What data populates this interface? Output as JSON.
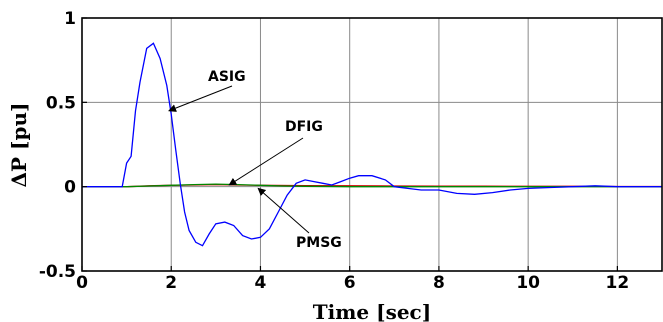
{
  "chart_data": {
    "type": "line",
    "title": "",
    "xlabel": "Time [sec]",
    "ylabel": "ΔP [pu]",
    "xlim": [
      0,
      13
    ],
    "ylim": [
      -0.5,
      1
    ],
    "xticks": [
      0,
      2,
      4,
      6,
      8,
      10,
      12
    ],
    "yticks": [
      -0.5,
      0,
      0.5,
      1
    ],
    "xtick_labels": [
      "0",
      "2",
      "4",
      "6",
      "8",
      "10",
      "12"
    ],
    "ytick_labels": [
      "-0.5",
      "0",
      "0.5",
      "1"
    ],
    "grid": true,
    "series": [
      {
        "name": "ASIG",
        "color": "#0000ff",
        "x": [
          0,
          0.9,
          1.0,
          1.1,
          1.2,
          1.3,
          1.45,
          1.6,
          1.75,
          1.9,
          2.0,
          2.1,
          2.2,
          2.3,
          2.4,
          2.55,
          2.7,
          2.85,
          3.0,
          3.2,
          3.4,
          3.6,
          3.8,
          4.0,
          4.2,
          4.4,
          4.6,
          4.8,
          5.0,
          5.2,
          5.4,
          5.6,
          5.8,
          6.0,
          6.2,
          6.5,
          6.8,
          7.0,
          7.3,
          7.6,
          8.0,
          8.4,
          8.8,
          9.2,
          9.6,
          10.0,
          10.5,
          11.0,
          11.5,
          12.0,
          12.5,
          13.0
        ],
        "y": [
          0,
          0,
          0.14,
          0.18,
          0.45,
          0.62,
          0.82,
          0.85,
          0.76,
          0.6,
          0.43,
          0.22,
          0.02,
          -0.15,
          -0.26,
          -0.33,
          -0.35,
          -0.28,
          -0.22,
          -0.21,
          -0.23,
          -0.29,
          -0.31,
          -0.3,
          -0.25,
          -0.15,
          -0.05,
          0.02,
          0.04,
          0.03,
          0.02,
          0.01,
          0.03,
          0.05,
          0.065,
          0.065,
          0.04,
          0.0,
          -0.01,
          -0.02,
          -0.02,
          -0.04,
          -0.045,
          -0.035,
          -0.02,
          -0.01,
          -0.005,
          0.0,
          0.005,
          0.0,
          0.0,
          0.0
        ]
      },
      {
        "name": "DFIG",
        "color": "#cc0000",
        "x": [
          0,
          1.0,
          1.5,
          2.0,
          2.5,
          3.0,
          3.5,
          4.0,
          5.0,
          6.0,
          7.0,
          8.0,
          9.0,
          10.0,
          11.0,
          12.0,
          13.0
        ],
        "y": [
          0,
          0,
          0.005,
          0.008,
          0.01,
          0.012,
          0.01,
          0.008,
          0.006,
          0.005,
          0.004,
          0.003,
          0.003,
          0.002,
          0.002,
          0.001,
          0.001
        ]
      },
      {
        "name": "PMSG",
        "color": "#008800",
        "x": [
          0,
          1.0,
          1.5,
          2.0,
          2.5,
          3.0,
          3.5,
          4.0,
          4.5,
          5.0,
          6.0,
          7.0,
          8.0,
          10.0,
          13.0
        ],
        "y": [
          0,
          0,
          0.004,
          0.008,
          0.012,
          0.015,
          0.012,
          0.008,
          0.004,
          0.002,
          0.0,
          0.0,
          0.0,
          0.0,
          0.0
        ]
      }
    ],
    "annotations": [
      {
        "text": "ASIG",
        "series": "ASIG",
        "arrow_to": [
          1.95,
          0.45
        ]
      },
      {
        "text": "DFIG",
        "series": "DFIG",
        "arrow_to": [
          3.3,
          0.01
        ]
      },
      {
        "text": "PMSG",
        "series": "PMSG",
        "arrow_to": [
          3.95,
          -0.01
        ]
      }
    ]
  }
}
